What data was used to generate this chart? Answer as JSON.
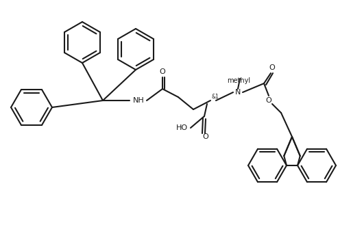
{
  "bg_color": "#ffffff",
  "line_color": "#1a1a1a",
  "line_width": 1.5,
  "fig_width": 5.09,
  "fig_height": 3.28,
  "dpi": 100
}
